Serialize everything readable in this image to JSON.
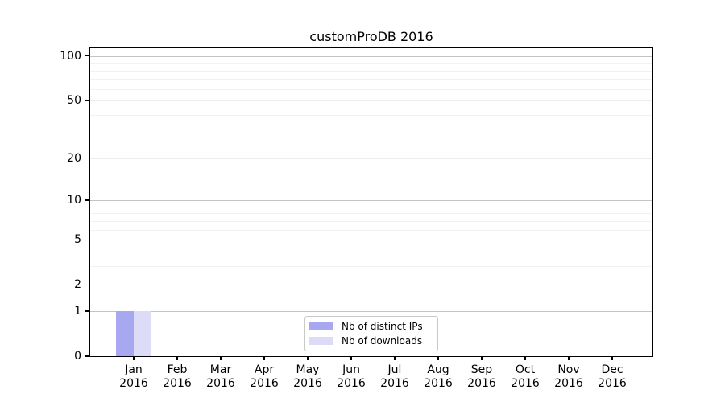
{
  "title": "customProDB 2016",
  "chart_data": {
    "type": "bar",
    "title": "customProDB 2016",
    "yscale": "log1p",
    "ylim": [
      0,
      113
    ],
    "grid": true,
    "legend_position": "bottom-center-inside",
    "categories": [
      "Jan 2016",
      "Feb 2016",
      "Mar 2016",
      "Apr 2016",
      "May 2016",
      "Jun 2016",
      "Jul 2016",
      "Aug 2016",
      "Sep 2016",
      "Oct 2016",
      "Nov 2016",
      "Dec 2016"
    ],
    "x_tick_labels": [
      {
        "line1": "Jan",
        "line2": "2016"
      },
      {
        "line1": "Feb",
        "line2": "2016"
      },
      {
        "line1": "Mar",
        "line2": "2016"
      },
      {
        "line1": "Apr",
        "line2": "2016"
      },
      {
        "line1": "May",
        "line2": "2016"
      },
      {
        "line1": "Jun",
        "line2": "2016"
      },
      {
        "line1": "Jul",
        "line2": "2016"
      },
      {
        "line1": "Aug",
        "line2": "2016"
      },
      {
        "line1": "Sep",
        "line2": "2016"
      },
      {
        "line1": "Oct",
        "line2": "2016"
      },
      {
        "line1": "Nov",
        "line2": "2016"
      },
      {
        "line1": "Dec",
        "line2": "2016"
      }
    ],
    "series": [
      {
        "name": "Nb of distinct IPs",
        "color": "#A8A8F0",
        "values": [
          1,
          0,
          0,
          0,
          0,
          0,
          0,
          0,
          0,
          0,
          0,
          0
        ]
      },
      {
        "name": "Nb of downloads",
        "color": "#DCDCF8",
        "values": [
          1,
          0,
          0,
          0,
          0,
          0,
          0,
          0,
          0,
          0,
          0,
          0
        ]
      }
    ],
    "y_tick_values": [
      0,
      1,
      2,
      5,
      10,
      20,
      50,
      100
    ],
    "y_decade_gridlines": [
      1,
      10,
      100
    ],
    "y_mid_gridlines": [
      2,
      5,
      20,
      50
    ],
    "y_minor_gridlines": [
      3,
      4,
      6,
      7,
      8,
      9,
      30,
      40,
      60,
      70,
      80,
      90
    ]
  }
}
